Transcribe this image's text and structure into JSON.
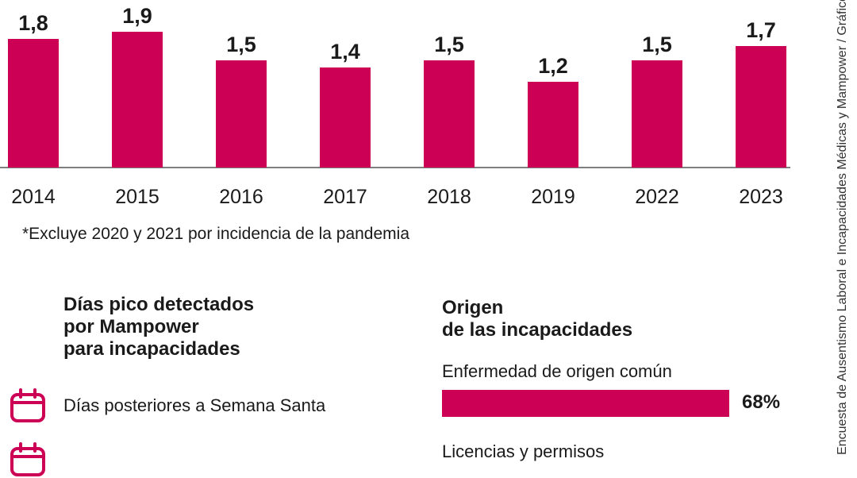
{
  "chart_data": {
    "type": "bar",
    "categories": [
      "2014",
      "2015",
      "2016",
      "2017",
      "2018",
      "2019",
      "2022",
      "2023"
    ],
    "values": [
      1.8,
      1.9,
      1.5,
      1.4,
      1.5,
      1.2,
      1.5,
      1.7
    ],
    "value_labels": [
      "1,8",
      "1,9",
      "1,5",
      "1,4",
      "1,5",
      "1,2",
      "1,5",
      "1,7"
    ],
    "bar_color": "#cc0055",
    "ylim": [
      0,
      2.1
    ],
    "grid": false
  },
  "footnote": "*Excluye 2020 y 2021 por incidencia de la pandemia",
  "peak_days": {
    "title_lines": [
      "Días pico detectados",
      "por Mampower",
      "para incapacidades"
    ],
    "items": [
      {
        "icon": "calendar-icon",
        "label": "Días posteriores a Semana Santa"
      },
      {
        "icon": "calendar-icon",
        "label": ""
      }
    ]
  },
  "origin": {
    "title_lines": [
      "Origen",
      "de las incapacidades"
    ],
    "items": [
      {
        "label": "Enfermedad de origen común",
        "value": 68,
        "value_label": "68%"
      },
      {
        "label": "Licencias y permisos"
      }
    ]
  },
  "source_text": "Encuesta de Ausentismo Laboral e Incapacidades Médicas y Mampower / Gráfico"
}
